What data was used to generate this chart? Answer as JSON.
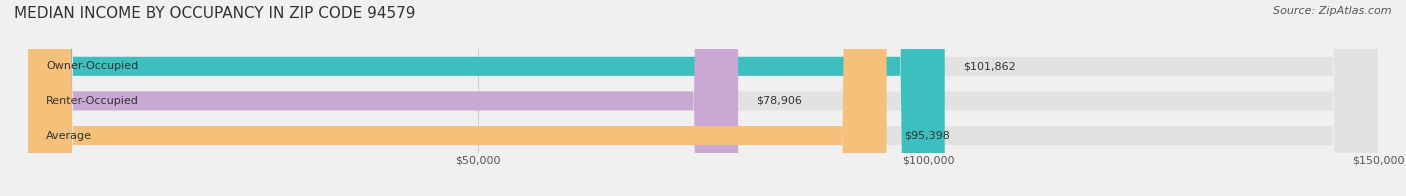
{
  "title": "MEDIAN INCOME BY OCCUPANCY IN ZIP CODE 94579",
  "source": "Source: ZipAtlas.com",
  "categories": [
    "Owner-Occupied",
    "Renter-Occupied",
    "Average"
  ],
  "values": [
    101862,
    78906,
    95398
  ],
  "labels": [
    "$101,862",
    "$78,906",
    "$95,398"
  ],
  "bar_colors": [
    "#3dbfbf",
    "#c9a8d4",
    "#f5c07a"
  ],
  "background_color": "#f0f0f0",
  "bar_bg_color": "#e2e2e2",
  "xlim": [
    0,
    150000
  ],
  "title_fontsize": 11,
  "source_fontsize": 8,
  "label_fontsize": 8,
  "tick_fontsize": 8,
  "bar_height": 0.55,
  "figsize": [
    14.06,
    1.96
  ],
  "dpi": 100
}
